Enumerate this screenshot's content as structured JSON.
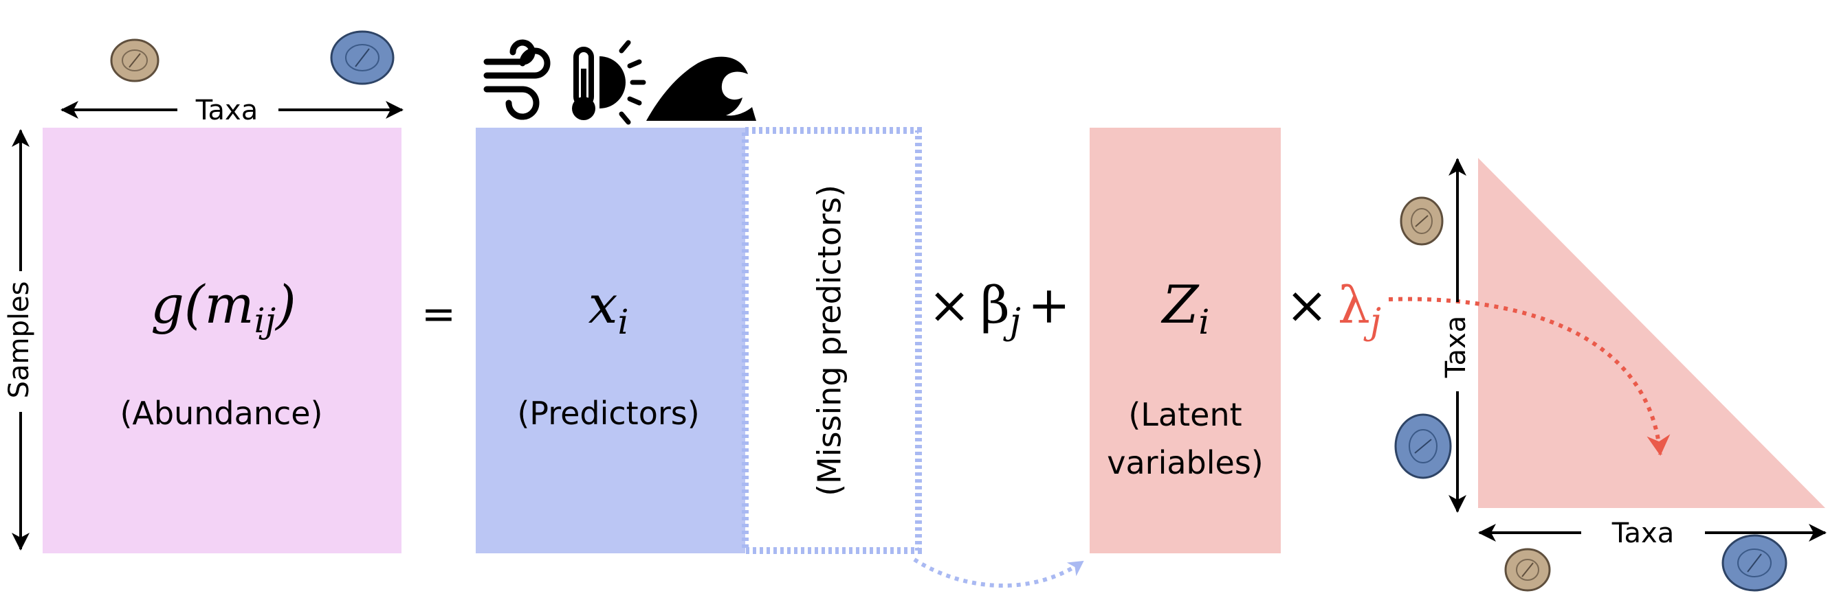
{
  "colors": {
    "abundance_fill": "#f3d3f6",
    "predictors_fill": "#bbc6f4",
    "latent_fill": "#f5c6c3",
    "dotted_blue": "#a9b9f2",
    "lambda_red": "#ea5a4a",
    "taxon_small": "#c2ab8c",
    "taxon_large": "#6e8dbf"
  },
  "icons": [
    "taxon-small-icon",
    "taxon-large-icon",
    "wind-icon",
    "thermometer-sun-icon",
    "wave-icon"
  ],
  "abundance": {
    "formula_g": "g(",
    "formula_m": "m",
    "formula_sub": "ij",
    "formula_close": ")",
    "caption": "(Abundance)",
    "top_axis": "Taxa",
    "side_axis": "Samples"
  },
  "equals": "=",
  "predictors": {
    "symbol": "x",
    "symbol_sub": "i",
    "caption": "(Predictors)",
    "missing": "(Missing predictors)"
  },
  "times_beta": {
    "times": "×",
    "beta": "β",
    "sub": "j",
    "plus": "+"
  },
  "latent": {
    "symbol": "Z",
    "symbol_sub": "i",
    "caption_line1": "(Latent",
    "caption_line2": "variables)"
  },
  "times_lambda": {
    "times": "×",
    "lambda": "λ",
    "sub": "j"
  },
  "triangle": {
    "side_axis": "Taxa",
    "bottom_axis": "Taxa"
  }
}
